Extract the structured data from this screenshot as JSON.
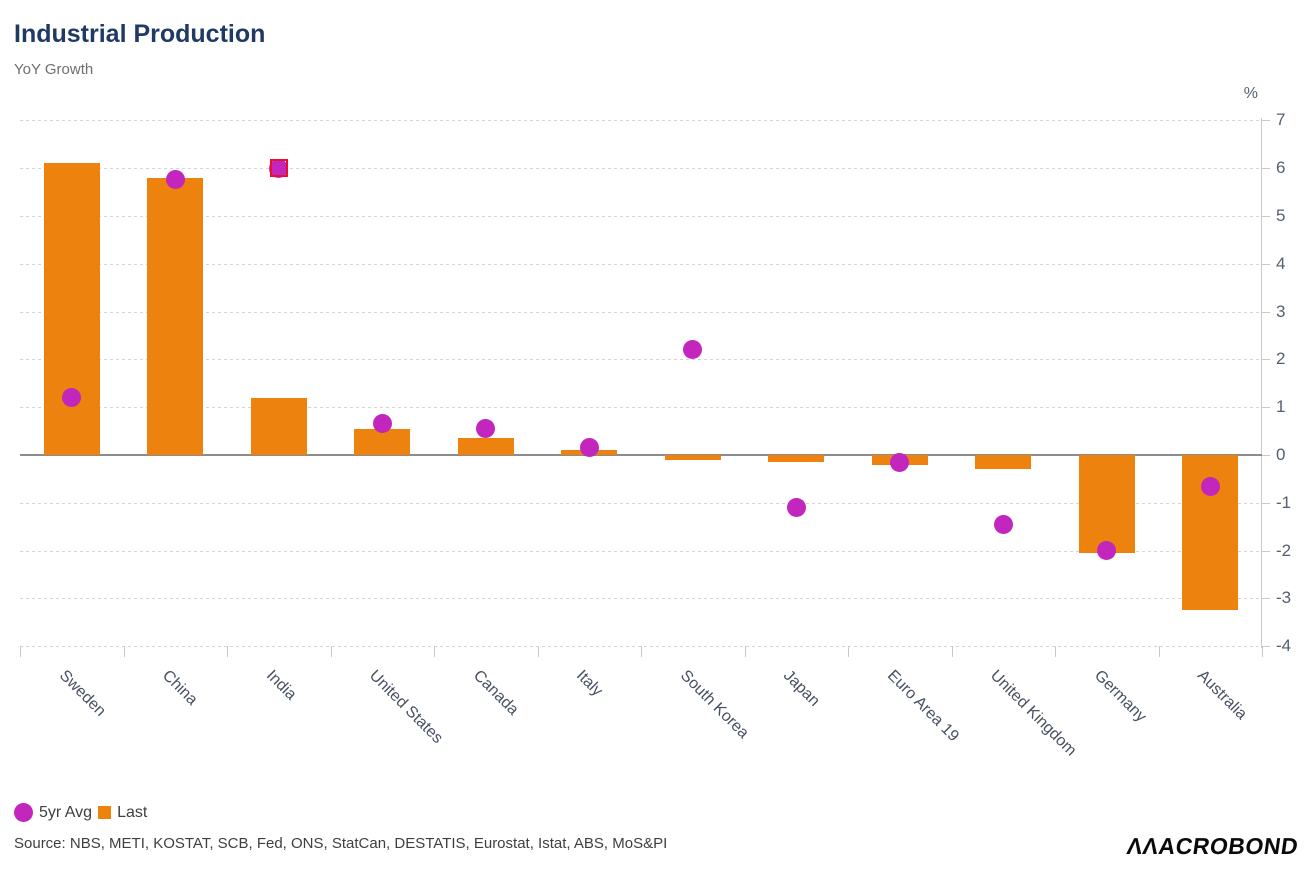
{
  "header": {
    "title": "Industrial Production",
    "subtitle": "YoY Growth"
  },
  "chart_data": {
    "type": "bar",
    "title": "Industrial Production",
    "subtitle": "YoY Growth",
    "unit_label": "%",
    "categories": [
      "Sweden",
      "China",
      "India",
      "United States",
      "Canada",
      "Italy",
      "South Korea",
      "Japan",
      "Euro Area 19",
      "United Kingdom",
      "Germany",
      "Australia"
    ],
    "series": [
      {
        "name": "Last",
        "type": "bar",
        "color": "#ee820e",
        "values": [
          6.1,
          5.8,
          1.2,
          0.55,
          0.35,
          0.1,
          -0.1,
          -0.15,
          -0.2,
          -0.3,
          -2.05,
          -3.25
        ]
      },
      {
        "name": "5yr Avg",
        "type": "scatter",
        "color": "#c226bc",
        "values": [
          1.2,
          5.75,
          6.0,
          0.65,
          0.55,
          0.15,
          2.2,
          -1.1,
          -0.15,
          -1.45,
          -2.0,
          -0.65
        ]
      }
    ],
    "ylim": [
      -4,
      7
    ],
    "yticks": [
      7,
      6,
      5,
      4,
      3,
      2,
      1,
      0,
      -1,
      -2,
      -3,
      -4
    ],
    "grid": "horizontal-dashed",
    "legend_position": "bottom-left",
    "highlight": {
      "category": "India",
      "series": "5yr Avg",
      "color": "#e8112d"
    }
  },
  "legend": [
    {
      "label": "5yr Avg",
      "marker": "circle",
      "color": "#c226bc"
    },
    {
      "label": "Last",
      "marker": "square",
      "color": "#ee820e"
    }
  ],
  "source": "Source: NBS, METI, KOSTAT, SCB, Fed, ONS, StatCan, DESTATIS, Eurostat, Istat, ABS, MoS&PI",
  "logo": {
    "text": "MACROBOND"
  },
  "colors": {
    "title": "#1f3a63",
    "subtitle": "#6f6f6f",
    "axis_text": "#55606e",
    "bar": "#ee820e",
    "dot": "#c226bc",
    "highlight": "#e8112d"
  }
}
